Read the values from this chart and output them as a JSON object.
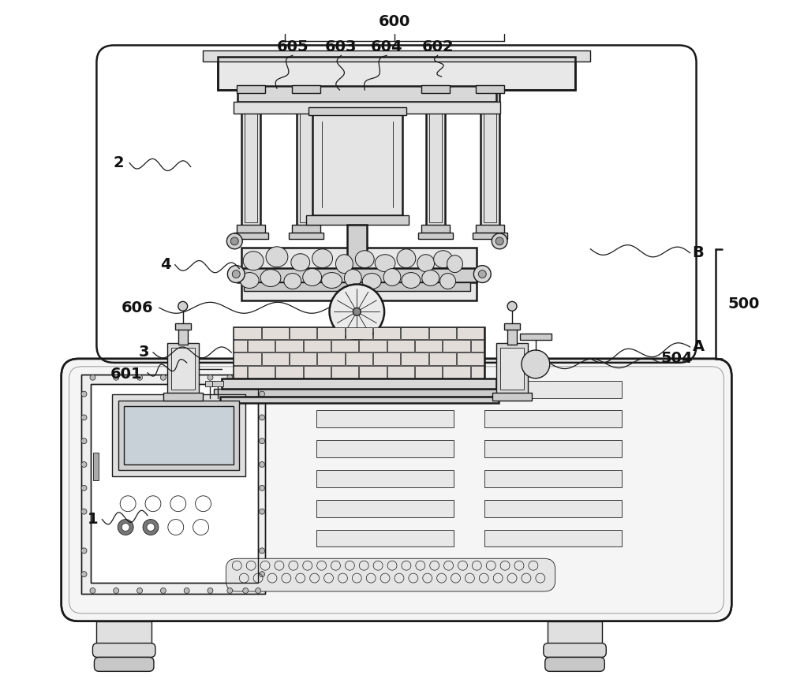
{
  "bg_color": "#ffffff",
  "lc": "#1a1a1a",
  "figsize": [
    10.0,
    8.75
  ],
  "dpi": 100,
  "label_fs": 14,
  "label_color": "#111111"
}
